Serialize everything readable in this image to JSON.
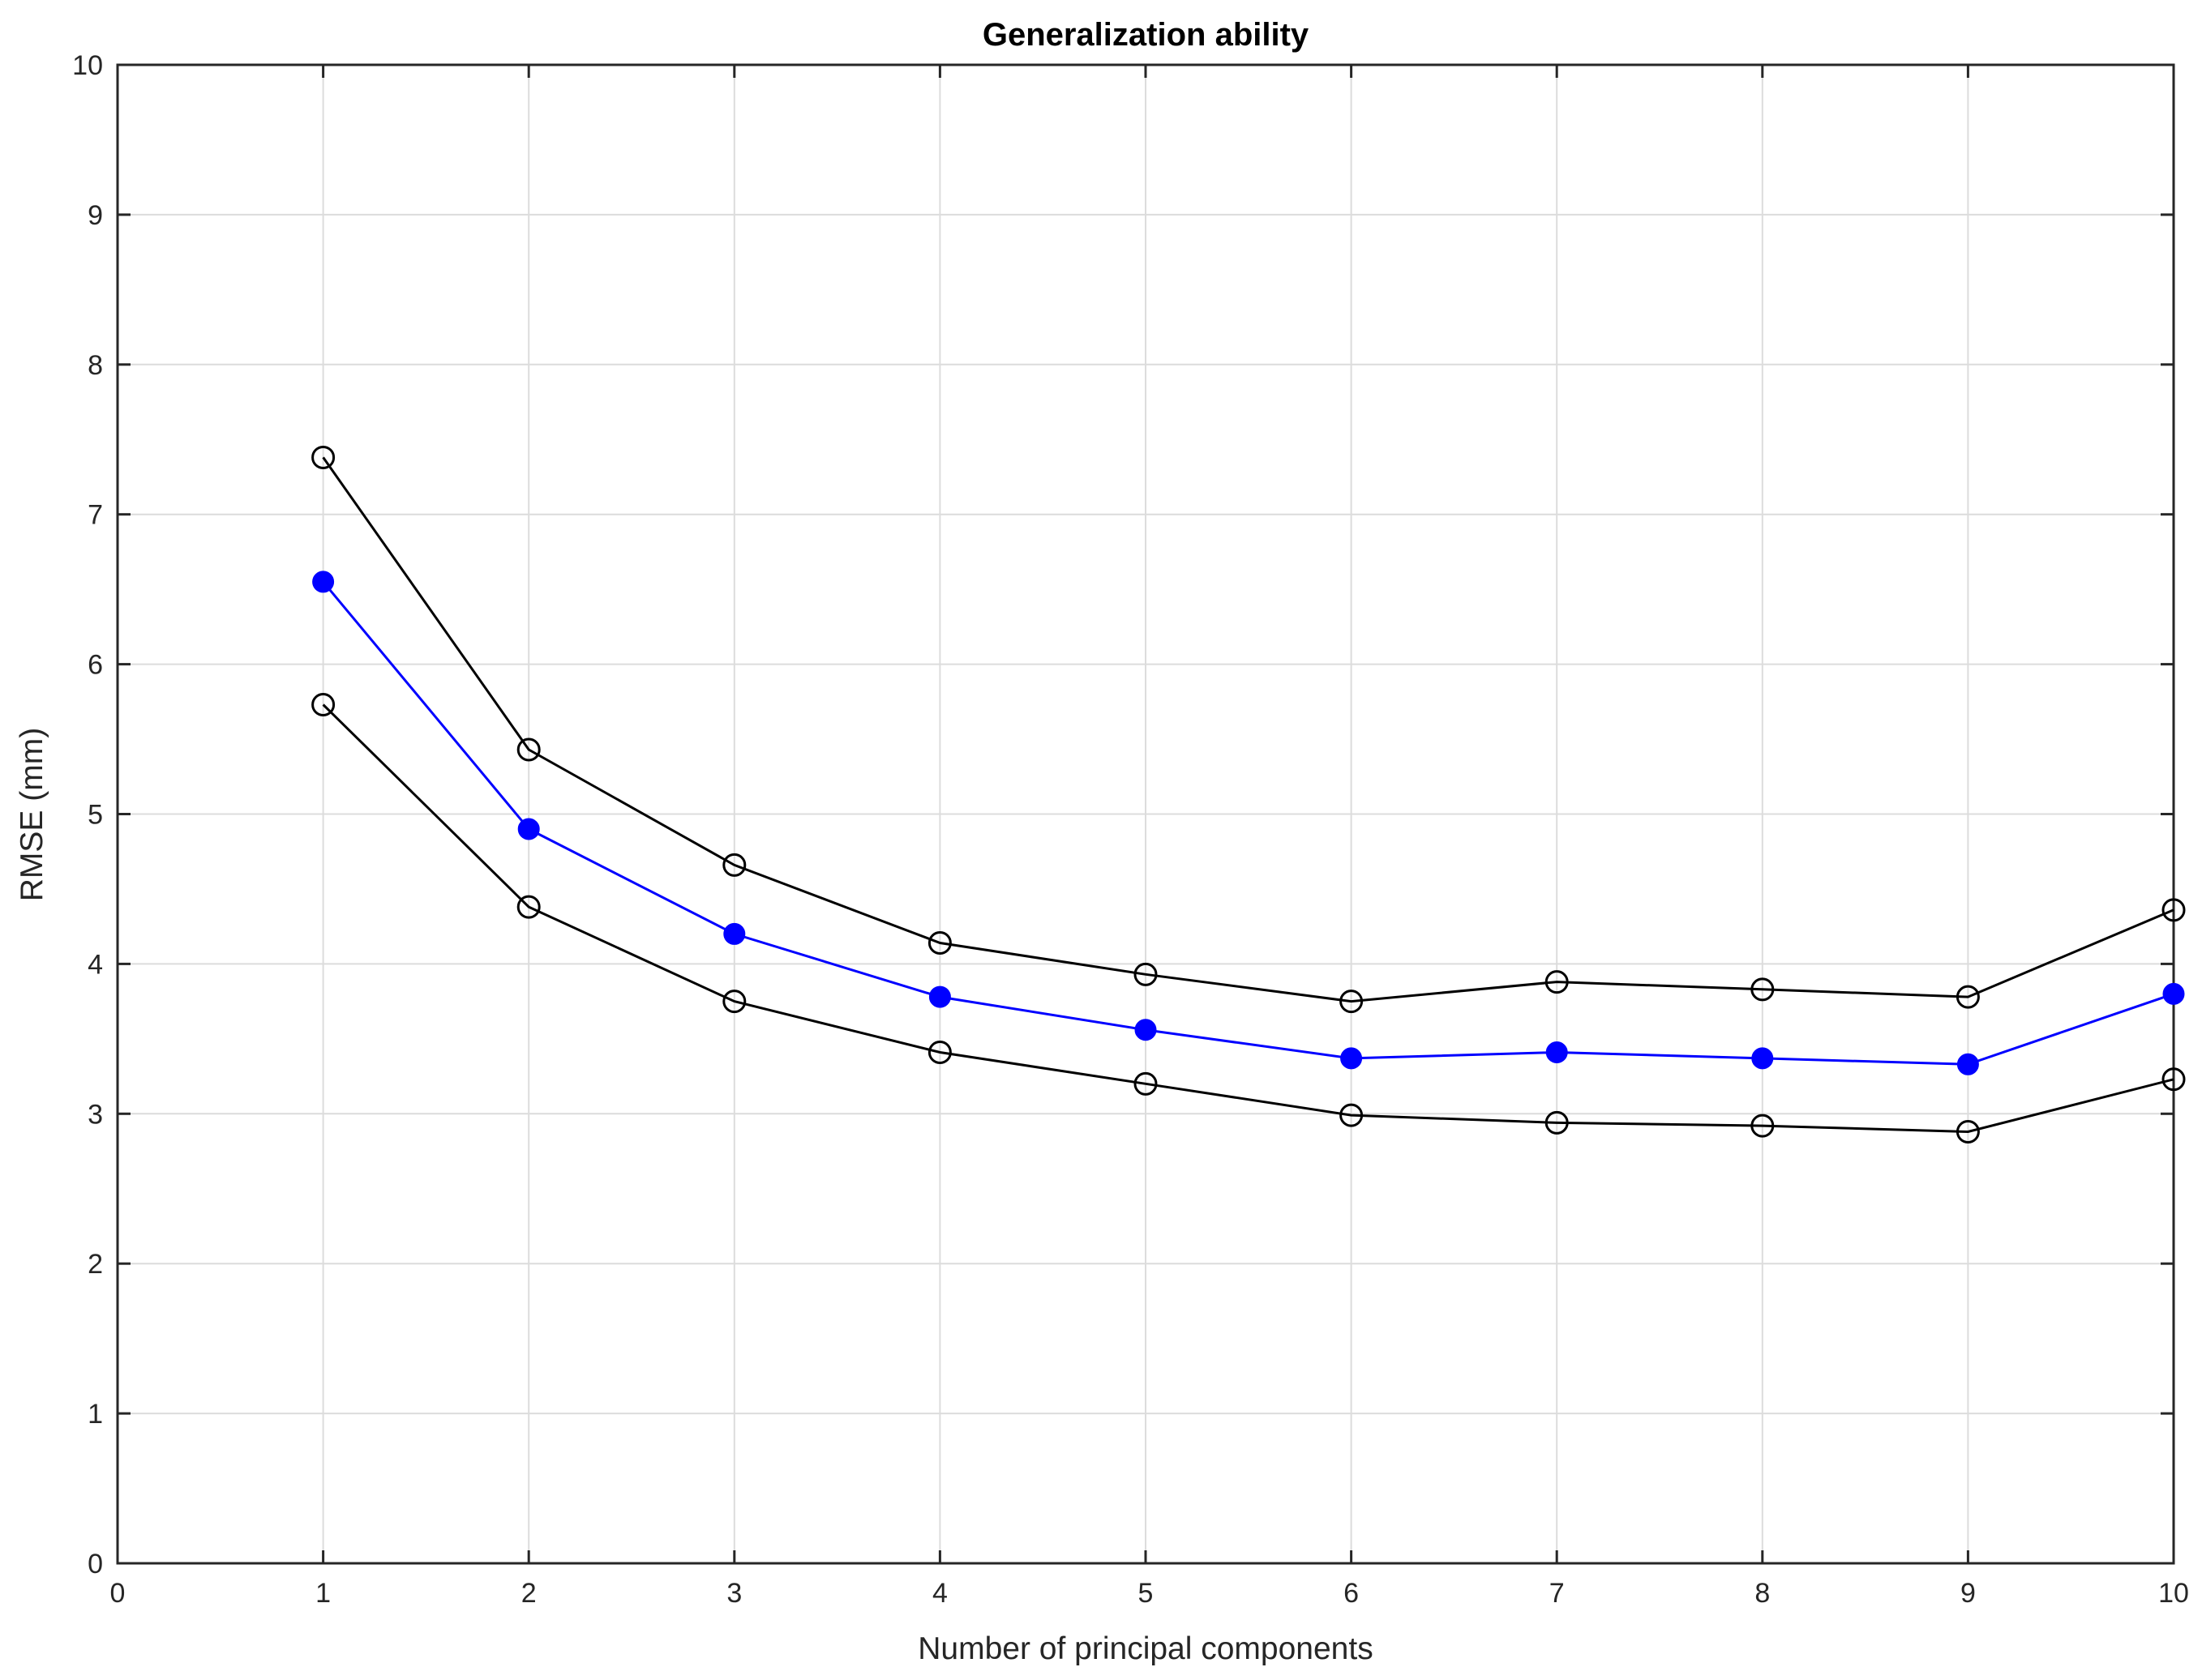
{
  "chart_data": {
    "type": "line",
    "title": "Generalization ability",
    "xlabel": "Number of principal components",
    "ylabel": "RMSE (mm)",
    "xlim": [
      0,
      10
    ],
    "ylim": [
      0,
      10
    ],
    "xticks": [
      "0",
      "1",
      "2",
      "3",
      "4",
      "5",
      "6",
      "7",
      "8",
      "9",
      "10"
    ],
    "yticks": [
      "0",
      "1",
      "2",
      "3",
      "4",
      "5",
      "6",
      "7",
      "8",
      "9",
      "10"
    ],
    "grid": true,
    "x": [
      1,
      2,
      3,
      4,
      5,
      6,
      7,
      8,
      9,
      10
    ],
    "series": [
      {
        "values": [
          7.38,
          5.43,
          4.66,
          4.14,
          3.93,
          3.75,
          3.88,
          3.83,
          3.78,
          4.36
        ],
        "color": "#000000",
        "marker": "open-circle"
      },
      {
        "values": [
          6.55,
          4.9,
          4.2,
          3.78,
          3.56,
          3.37,
          3.41,
          3.37,
          3.33,
          3.8
        ],
        "color": "#0000ff",
        "marker": "filled-circle"
      },
      {
        "values": [
          5.73,
          4.38,
          3.75,
          3.41,
          3.2,
          2.99,
          2.94,
          2.92,
          2.88,
          3.23
        ],
        "color": "#000000",
        "marker": "open-circle"
      }
    ]
  }
}
